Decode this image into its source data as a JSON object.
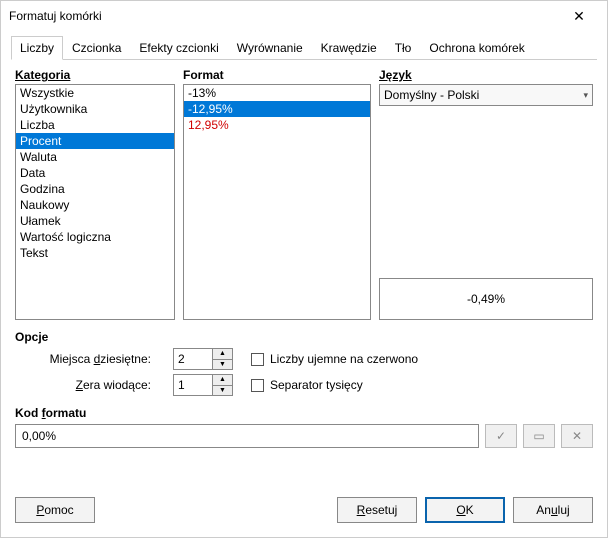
{
  "window": {
    "title": "Formatuj komórki"
  },
  "tabs": [
    "Liczby",
    "Czcionka",
    "Efekty czcionki",
    "Wyrównanie",
    "Krawędzie",
    "Tło",
    "Ochrona komórek"
  ],
  "activeTab": 0,
  "labels": {
    "category": "Kategoria",
    "format": "Format",
    "language": "Język",
    "options": "Opcje",
    "decimals_pre": "Miejsca ",
    "decimals_u": "d",
    "decimals_post": "ziesiętne:",
    "zeros_u": "Z",
    "zeros_post": "era wiodące:",
    "neg_red": "Liczby ujemne na czerwono",
    "thou_sep": "Separator tysięcy",
    "code_pre": "Kod ",
    "code_u": "f",
    "code_post": "ormatu"
  },
  "categories": [
    "Wszystkie",
    "Użytkownika",
    "Liczba",
    "Procent",
    "Waluta",
    "Data",
    "Godzina",
    "Naukowy",
    "Ułamek",
    "Wartość logiczna",
    "Tekst"
  ],
  "categorySelected": 3,
  "formats": [
    {
      "text": "-13%",
      "red": false
    },
    {
      "text": "-12,95%",
      "red": false
    },
    {
      "text": "12,95%",
      "red": true
    }
  ],
  "formatSelected": 1,
  "language": "Domyślny - Polski",
  "preview": "-0,49%",
  "decimals": "2",
  "leadingZeros": "1",
  "negRed": false,
  "thouSep": false,
  "formatCode": "0,00%",
  "buttons": {
    "help_u": "P",
    "help_post": "omoc",
    "reset_u": "R",
    "reset_post": "esetuj",
    "ok_u": "O",
    "ok_post": "K",
    "cancel_pre": "An",
    "cancel_u": "u",
    "cancel_post": "luj"
  },
  "colors": {
    "selection": "#0078d7",
    "red": "#d00000"
  }
}
